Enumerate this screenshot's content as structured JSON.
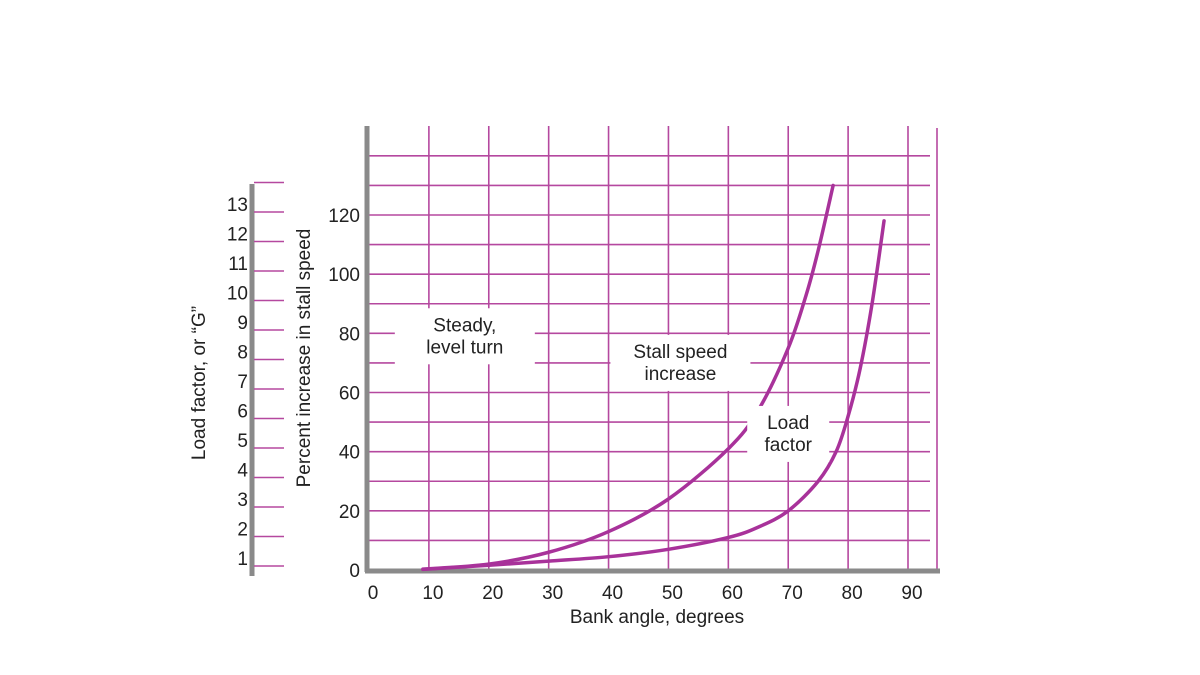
{
  "colors": {
    "grid": "#b5489f",
    "curve": "#a8329a",
    "axis": "#8a8a8a",
    "text": "#222222"
  },
  "chart_data": {
    "type": "line",
    "xlabel": "Bank angle, degrees",
    "ylabel": "Percent increase in stall speed",
    "y2label": "Load factor, or “G”",
    "xlim": [
      0,
      95
    ],
    "ylim": [
      0,
      120
    ],
    "x_ticks": [
      "0",
      "10",
      "20",
      "30",
      "40",
      "50",
      "60",
      "70",
      "80",
      "90"
    ],
    "y_ticks": [
      "0",
      "20",
      "40",
      "60",
      "80",
      "100",
      "120"
    ],
    "y2_ticks": [
      "1",
      "2",
      "3",
      "4",
      "5",
      "6",
      "7",
      "8",
      "9",
      "10",
      "11",
      "12",
      "13"
    ],
    "grid": true,
    "series": [
      {
        "name": "Stall speed increase",
        "x": [
          9,
          20,
          30,
          40,
          50,
          60,
          65,
          70,
          73,
          75,
          77.5
        ],
        "y": [
          0.3,
          2,
          6,
          13,
          24,
          41,
          54,
          75,
          93,
          108,
          130
        ]
      },
      {
        "name": "Load factor",
        "x": [
          9,
          20,
          30,
          40,
          50,
          60,
          65,
          70,
          75,
          78,
          80,
          82,
          84,
          86
        ],
        "y": [
          0.2,
          1.6,
          3,
          4.5,
          7,
          11,
          14.5,
          20,
          30,
          40,
          52,
          68,
          90,
          118
        ]
      }
    ],
    "annotations": [
      {
        "text": [
          "Steady,",
          "level turn"
        ],
        "x": 16,
        "y": 79
      },
      {
        "text": [
          "Stall speed",
          "increase"
        ],
        "x": 52,
        "y": 70
      },
      {
        "text": [
          "Load",
          "factor"
        ],
        "x": 70,
        "y": 46
      }
    ]
  }
}
